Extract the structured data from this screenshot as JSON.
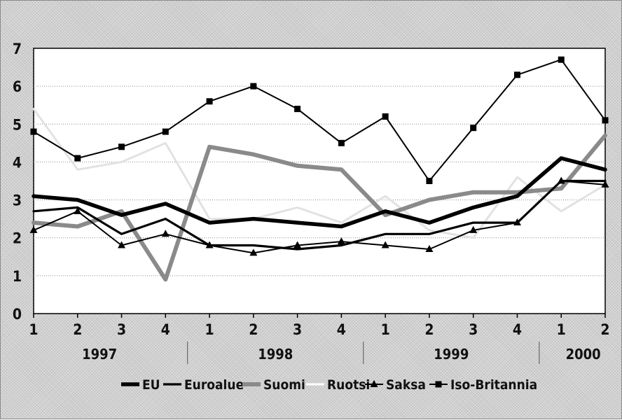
{
  "chart_data": {
    "type": "line",
    "title": "",
    "xlabel": "",
    "ylabel": "",
    "ylim": [
      0,
      7
    ],
    "yticks": [
      "0",
      "1",
      "2",
      "3",
      "4",
      "5",
      "6",
      "7"
    ],
    "categories": [
      "1",
      "2",
      "3",
      "4",
      "1",
      "2",
      "3",
      "4",
      "1",
      "2",
      "3",
      "4",
      "1",
      "2"
    ],
    "years": [
      {
        "label": "1997",
        "quarters": 4
      },
      {
        "label": "1998",
        "quarters": 4
      },
      {
        "label": "1999",
        "quarters": 4
      },
      {
        "label": "2000",
        "quarters": 2
      }
    ],
    "grid": true,
    "legend_position": "bottom",
    "series": [
      {
        "name": "EU",
        "color": "#000000",
        "style": "thick",
        "marker": "none",
        "values": [
          3.1,
          3.0,
          2.6,
          2.9,
          2.4,
          2.5,
          2.4,
          2.3,
          2.7,
          2.4,
          2.8,
          3.1,
          4.1,
          3.8
        ]
      },
      {
        "name": "Euroalue",
        "color": "#000000",
        "style": "medium",
        "marker": "none",
        "values": [
          2.7,
          2.8,
          2.1,
          2.5,
          1.8,
          1.8,
          1.7,
          1.8,
          2.1,
          2.1,
          2.4,
          2.4,
          3.5,
          3.5
        ]
      },
      {
        "name": "Suomi",
        "color": "#8a8a8a",
        "style": "thick-gray",
        "marker": "none",
        "values": [
          2.4,
          2.3,
          2.7,
          0.9,
          4.4,
          4.2,
          3.9,
          3.8,
          2.6,
          3.0,
          3.2,
          3.2,
          3.3,
          4.7
        ]
      },
      {
        "name": "Ruotsi",
        "color": "#e2e2e2",
        "style": "light",
        "marker": "none",
        "values": [
          5.4,
          3.8,
          4.0,
          4.5,
          2.5,
          2.5,
          2.8,
          2.4,
          3.1,
          2.2,
          2.0,
          3.6,
          2.7,
          3.4
        ]
      },
      {
        "name": "Saksa",
        "color": "#000000",
        "style": "thin",
        "marker": "triangle",
        "values": [
          2.2,
          2.7,
          1.8,
          2.1,
          1.8,
          1.6,
          1.8,
          1.9,
          1.8,
          1.7,
          2.2,
          2.4,
          3.5,
          3.4
        ]
      },
      {
        "name": "Iso-Britannia",
        "color": "#000000",
        "style": "thin",
        "marker": "square",
        "values": [
          4.8,
          4.1,
          4.4,
          4.8,
          5.6,
          6.0,
          5.4,
          4.5,
          5.2,
          3.5,
          4.9,
          6.3,
          6.7,
          5.1
        ]
      }
    ]
  }
}
